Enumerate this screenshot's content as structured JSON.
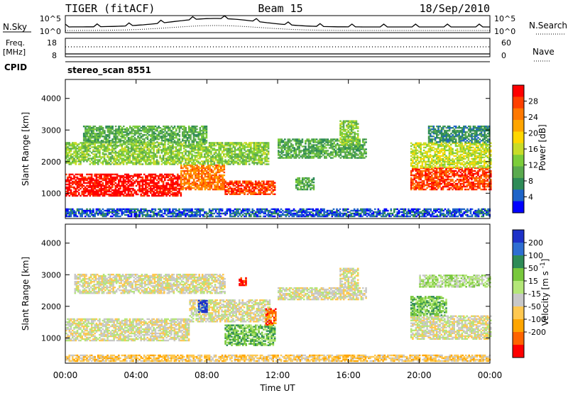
{
  "header": {
    "station": "TIGER (fitACF)",
    "beam": "Beam 15",
    "date": "18/Sep/2010"
  },
  "top_panels": {
    "nsky_label": "N.Sky",
    "nsky_ticks": [
      "10^5",
      "10^0"
    ],
    "nsearch_label": "N.Search",
    "nsearch_ticks": [
      "10^5",
      "10^0"
    ],
    "freq_label": "Freq.",
    "freq_unit": "[MHz]",
    "freq_ticks": [
      "18",
      "8"
    ],
    "nave_label": "Nave",
    "nave_ticks": [
      "60",
      "0"
    ],
    "cpid_label": "CPID",
    "cpid_value": "stereo_scan 8551"
  },
  "chart_data": [
    {
      "type": "heatmap",
      "name": "power-panel",
      "ylabel": "Slant Range [km]",
      "ylim": [
        200,
        4600
      ],
      "yticks": [
        1000,
        2000,
        3000,
        4000
      ],
      "xlim": [
        0,
        24
      ],
      "colorbar": {
        "label": "Power [dB]",
        "ticks": [
          "4",
          "8",
          "12",
          "16",
          "20",
          "24",
          "28"
        ],
        "colors": [
          "#0000ff",
          "#1e64c8",
          "#2e8b57",
          "#5aaa4e",
          "#7ccd3a",
          "#c8dc28",
          "#ffd700",
          "#ffa500",
          "#ff7800",
          "#ff4000",
          "#ff0000"
        ]
      },
      "bands": [
        {
          "t0": 0.0,
          "t1": 6.5,
          "r0": 900,
          "r1": 1600,
          "level": 10
        },
        {
          "t0": 6.5,
          "t1": 9.0,
          "r0": 1100,
          "r1": 1900,
          "level": 8
        },
        {
          "t0": 9.0,
          "t1": 11.8,
          "r0": 950,
          "r1": 1400,
          "level": 9
        },
        {
          "t0": 0.0,
          "t1": 11.5,
          "r0": 1900,
          "r1": 2600,
          "level": 4
        },
        {
          "t0": 1.0,
          "t1": 8.0,
          "r0": 2600,
          "r1": 3100,
          "level": 3
        },
        {
          "t0": 12.0,
          "t1": 17.0,
          "r0": 2100,
          "r1": 2700,
          "level": 3
        },
        {
          "t0": 15.5,
          "t1": 16.5,
          "r0": 2500,
          "r1": 3300,
          "level": 4
        },
        {
          "t0": 13.0,
          "t1": 14.0,
          "r0": 1100,
          "r1": 1500,
          "level": 3
        },
        {
          "t0": 19.5,
          "t1": 24.0,
          "r0": 1100,
          "r1": 1800,
          "level": 9
        },
        {
          "t0": 19.5,
          "t1": 24.0,
          "r0": 1800,
          "r1": 2600,
          "level": 5
        },
        {
          "t0": 20.5,
          "t1": 24.0,
          "r0": 2600,
          "r1": 3100,
          "level": 2
        },
        {
          "t0": 0.0,
          "t1": 24.0,
          "r0": 250,
          "r1": 500,
          "level": 1
        }
      ]
    },
    {
      "type": "heatmap",
      "name": "velocity-panel",
      "ylabel": "Slant Range [km]",
      "ylim": [
        200,
        4600
      ],
      "yticks": [
        1000,
        2000,
        3000,
        4000
      ],
      "xlim": [
        0,
        24
      ],
      "xticks": [
        "00:00",
        "04:00",
        "08:00",
        "12:00",
        "16:00",
        "20:00",
        "00:00"
      ],
      "xlabel": "Time UT",
      "colorbar": {
        "label": "Velocity [m s^-1]",
        "ticks": [
          "200",
          "100",
          "50",
          "15",
          "-15",
          "-50",
          "-100",
          "-200"
        ],
        "colors": [
          "#1e32c8",
          "#2e6ed2",
          "#2e8b57",
          "#78c83c",
          "#b4e678",
          "#c8c8c8",
          "#ffc850",
          "#ffa500",
          "#ff6400",
          "#ff0000"
        ]
      },
      "bands": [
        {
          "t0": 0.0,
          "t1": 7.0,
          "r0": 900,
          "r1": 1600,
          "level": 5
        },
        {
          "t0": 7.0,
          "t1": 11.5,
          "r0": 1500,
          "r1": 2200,
          "level": 5
        },
        {
          "t0": 9.0,
          "t1": 11.8,
          "r0": 750,
          "r1": 1400,
          "level": 3
        },
        {
          "t0": 11.3,
          "t1": 11.9,
          "r0": 1400,
          "r1": 1900,
          "level": 8
        },
        {
          "t0": 7.5,
          "t1": 8.0,
          "r0": 1800,
          "r1": 2200,
          "level": 0
        },
        {
          "t0": 0.5,
          "t1": 9.0,
          "r0": 2400,
          "r1": 3000,
          "level": 5
        },
        {
          "t0": 12.0,
          "t1": 17.0,
          "r0": 2200,
          "r1": 2600,
          "level": 5
        },
        {
          "t0": 15.5,
          "t1": 16.5,
          "r0": 2500,
          "r1": 3200,
          "level": 5
        },
        {
          "t0": 19.5,
          "t1": 24.0,
          "r0": 950,
          "r1": 1700,
          "level": 5
        },
        {
          "t0": 19.5,
          "t1": 21.5,
          "r0": 1700,
          "r1": 2300,
          "level": 3
        },
        {
          "t0": 20.0,
          "t1": 24.0,
          "r0": 2600,
          "r1": 3000,
          "level": 4
        },
        {
          "t0": 9.8,
          "t1": 10.2,
          "r0": 2650,
          "r1": 2900,
          "level": 9
        },
        {
          "t0": 0.0,
          "t1": 24.0,
          "r0": 250,
          "r1": 450,
          "level": 6
        }
      ]
    }
  ]
}
